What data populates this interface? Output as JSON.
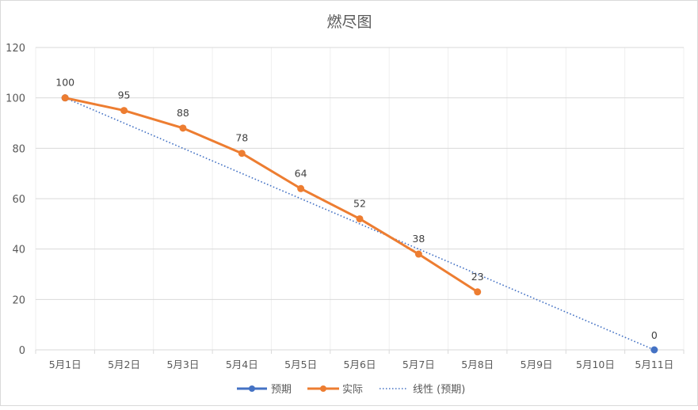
{
  "chart_data": {
    "type": "line",
    "title": "燃尽图",
    "xlabel": "",
    "ylabel": "",
    "categories": [
      "5月1日",
      "5月2日",
      "5月3日",
      "5月4日",
      "5月5日",
      "5月6日",
      "5月7日",
      "5月8日",
      "5月9日",
      "5月10日",
      "5月11日"
    ],
    "series": [
      {
        "name": "预期",
        "color": "#4472C4",
        "points": [
          {
            "index": 0,
            "value": 100
          },
          {
            "index": 10,
            "value": 0
          }
        ],
        "labels": [
          "",
          "0"
        ]
      },
      {
        "name": "实际",
        "color": "#ED7D31",
        "values": [
          100,
          95,
          88,
          78,
          64,
          52,
          38,
          23
        ]
      },
      {
        "name": "线性 (预期)",
        "color": "#4472C4",
        "style": "dotted",
        "trendline_of": "预期",
        "from": {
          "index": 0,
          "value": 100
        },
        "to": {
          "index": 10,
          "value": 0
        }
      }
    ],
    "data_labels": [
      "100",
      "95",
      "88",
      "78",
      "64",
      "52",
      "38",
      "23"
    ],
    "yticks": [
      "0",
      "20",
      "40",
      "60",
      "80",
      "100",
      "120"
    ],
    "ylim": [
      0,
      120
    ],
    "grid": true,
    "legend_position": "bottom"
  },
  "legend": {
    "items": [
      {
        "label": "预期"
      },
      {
        "label": "实际"
      },
      {
        "label": "线性 (预期)"
      }
    ]
  }
}
